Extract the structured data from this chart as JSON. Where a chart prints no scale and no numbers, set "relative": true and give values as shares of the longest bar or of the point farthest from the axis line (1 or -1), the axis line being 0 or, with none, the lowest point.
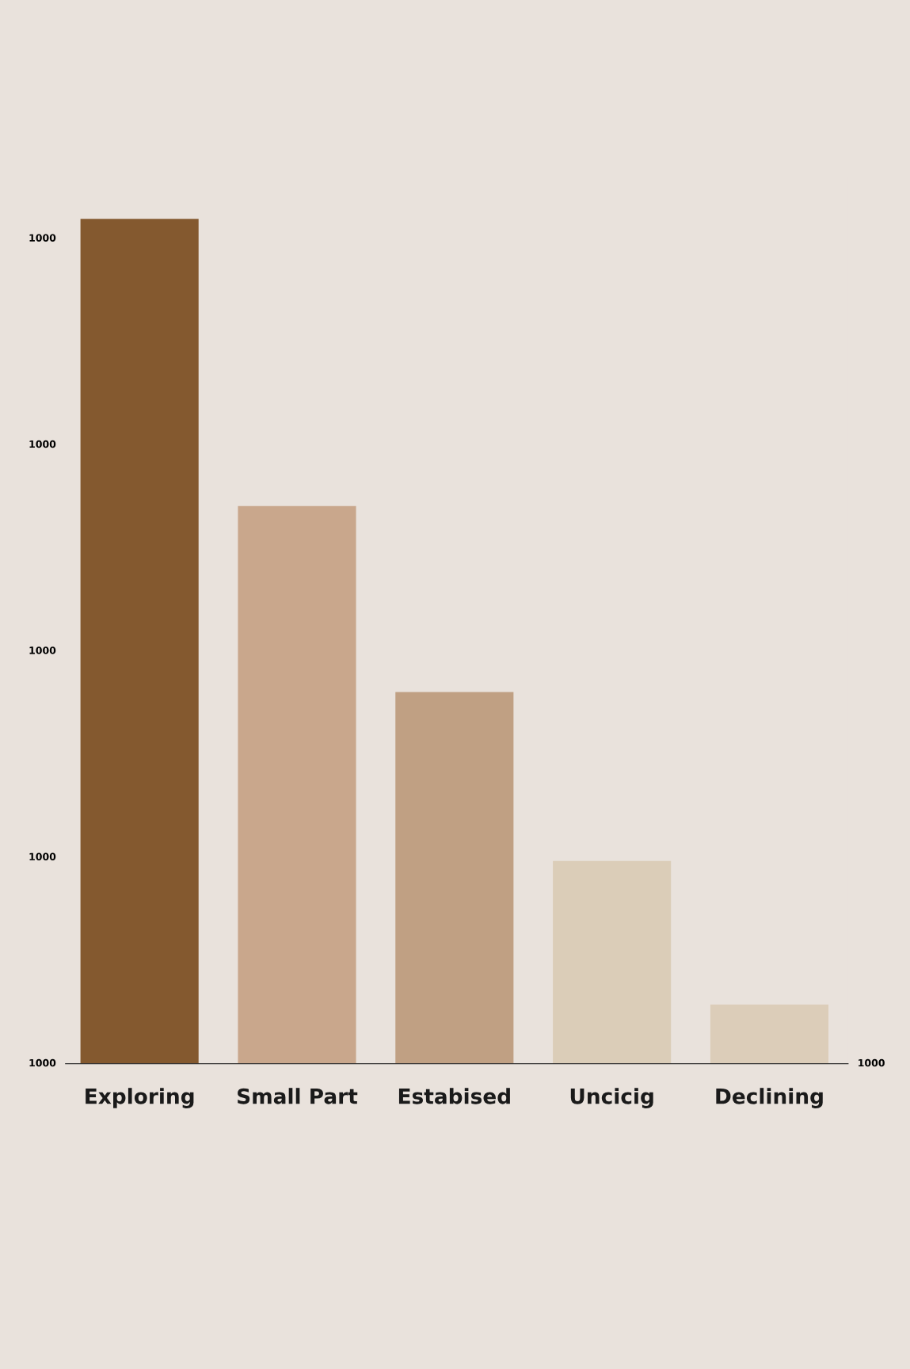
{
  "chart_data": {
    "type": "bar",
    "categories": [
      "Exploring",
      "Small Part",
      "Estabised",
      "Uncicig",
      "Declining"
    ],
    "values": [
      1,
      0.66,
      0.44,
      0.24,
      0.07
    ],
    "colors": [
      "#84592f",
      "#c9a78c",
      "#c0a083",
      "#dbcdb8",
      "#dccdb9"
    ],
    "relative": true,
    "annotations": [
      "1000",
      "1000",
      "1000",
      "1000",
      "1000",
      "1000"
    ],
    "grid": false,
    "legend": false
  }
}
